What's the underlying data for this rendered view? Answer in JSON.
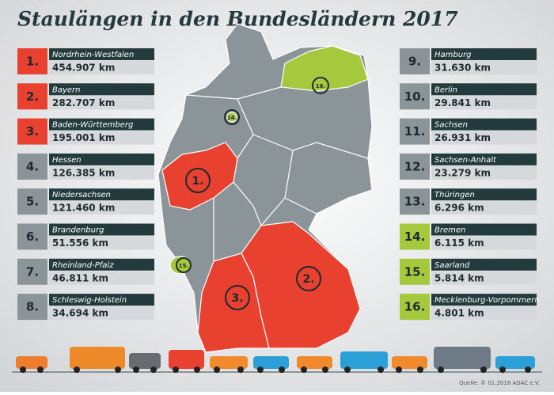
{
  "title": "Staulängen in den Bundesländern 2017",
  "source": "Quelle: © 01.2018 ADAC e.V.",
  "rankings": [
    {
      "rank": "1.",
      "state": "Nordrhein-Westfalen",
      "value": "454.907 km"
    },
    {
      "rank": "2.",
      "state": "Bayern",
      "value": "282.707 km"
    },
    {
      "rank": "3.",
      "state": "Baden-Württemberg",
      "value": "195.001 km"
    },
    {
      "rank": "4.",
      "state": "Hessen",
      "value": "126.385 km"
    },
    {
      "rank": "5.",
      "state": "Niedersachsen",
      "value": "121.460 km"
    },
    {
      "rank": "6.",
      "state": "Brandenburg",
      "value": "51.556 km"
    },
    {
      "rank": "7.",
      "state": "Rheinland-Pfalz",
      "value": "46.811 km"
    },
    {
      "rank": "8.",
      "state": "Schleswig-Holstein",
      "value": "34.694 km"
    },
    {
      "rank": "9.",
      "state": "Hamburg",
      "value": "31.630 km"
    },
    {
      "rank": "10.",
      "state": "Berlin",
      "value": "29.841 km"
    },
    {
      "rank": "11.",
      "state": "Sachsen",
      "value": "26.931 km"
    },
    {
      "rank": "12.",
      "state": "Sachsen-Anhalt",
      "value": "23.279 km"
    },
    {
      "rank": "13.",
      "state": "Thüringen",
      "value": "6.296 km"
    },
    {
      "rank": "14.",
      "state": "Bremen",
      "value": "6.115 km"
    },
    {
      "rank": "15.",
      "state": "Saarland",
      "value": "5.814 km"
    },
    {
      "rank": "16.",
      "state": "Mecklenburg-Vorpommern",
      "value": "4.801 km"
    }
  ]
}
